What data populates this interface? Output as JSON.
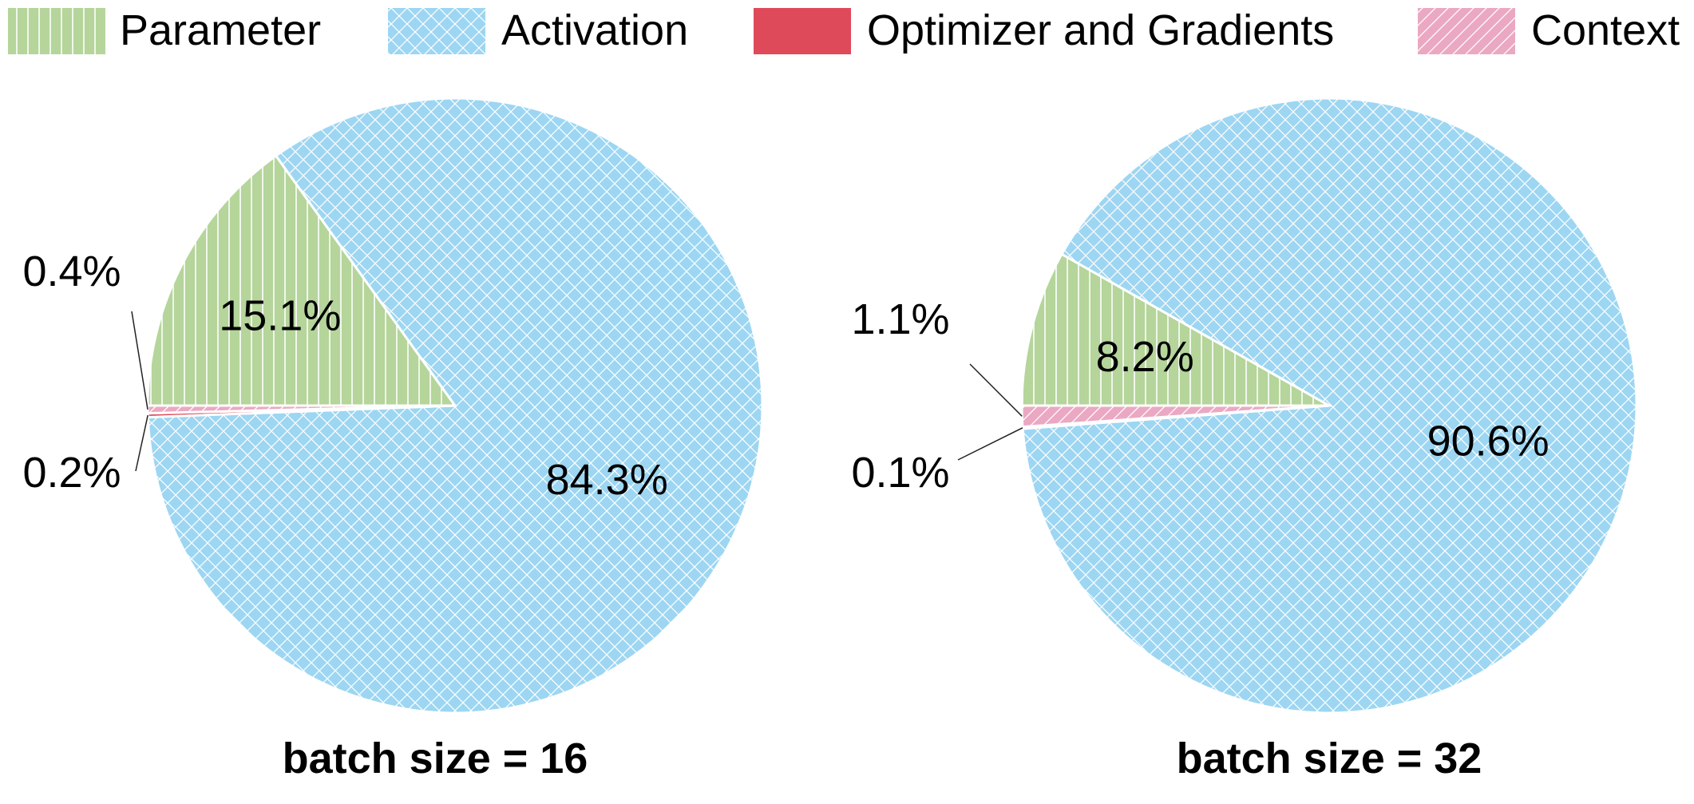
{
  "legend": {
    "items": [
      {
        "label": "Parameter",
        "color": "#b5d59b",
        "pattern": "vertical-lines"
      },
      {
        "label": "Activation",
        "color": "#9dd6f2",
        "pattern": "crosshatch"
      },
      {
        "label": "Optimizer and Gradients",
        "color": "#de4a5a",
        "pattern": "solid"
      },
      {
        "label": "Context",
        "color": "#eba8c2",
        "pattern": "diagonal-lines"
      }
    ]
  },
  "chart_data": [
    {
      "type": "pie",
      "title": "batch size = 16",
      "slices": [
        {
          "name": "Parameter",
          "value": 15.1,
          "label": "15.1%"
        },
        {
          "name": "Activation",
          "value": 84.3,
          "label": "84.3%"
        },
        {
          "name": "Optimizer and Gradients",
          "value": 0.2,
          "label": "0.2%"
        },
        {
          "name": "Context",
          "value": 0.4,
          "label": "0.4%"
        }
      ]
    },
    {
      "type": "pie",
      "title": "batch size = 32",
      "slices": [
        {
          "name": "Parameter",
          "value": 8.2,
          "label": "8.2%"
        },
        {
          "name": "Activation",
          "value": 90.6,
          "label": "90.6%"
        },
        {
          "name": "Optimizer and Gradients",
          "value": 0.1,
          "label": "0.1%"
        },
        {
          "name": "Context",
          "value": 1.1,
          "label": "1.1%"
        }
      ]
    }
  ]
}
